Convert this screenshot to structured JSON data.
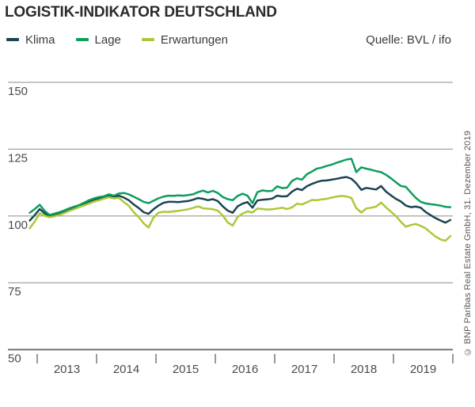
{
  "header": {
    "title": "LOGISTIK-INDIKATOR DEUTSCHLAND"
  },
  "legend": {
    "items": [
      {
        "label": "Klima",
        "color": "#1c4452"
      },
      {
        "label": "Lage",
        "color": "#0c9e5e"
      },
      {
        "label": "Erwartungen",
        "color": "#a9c938"
      }
    ],
    "source": "Quelle: BVL / ifo"
  },
  "footer": {
    "copyright": "© BNP Paribas Real Estate GmbH, 31. Dezember 2019"
  },
  "chart_data": {
    "type": "line",
    "title": "Logistik-Indikator Deutschland",
    "xlabel": "",
    "ylabel": "",
    "ylim": [
      50,
      150
    ],
    "y_ticks": [
      150,
      125,
      100,
      75,
      50
    ],
    "x_tick_years": [
      2013,
      2014,
      2015,
      2016,
      2017,
      2018,
      2019
    ],
    "x_start": {
      "year": 2012,
      "month": 11
    },
    "frequency": "monthly",
    "grid": true,
    "legend_position": "top-left",
    "colors": {
      "grid": "#a3a3a3",
      "axis": "#6f6f6f",
      "tick_text": "#4b4b4b"
    },
    "series": [
      {
        "name": "Klima",
        "color": "#1c4452",
        "values": [
          98.3,
          100.3,
          102.6,
          101.0,
          100.0,
          100.4,
          100.9,
          101.6,
          102.4,
          103.1,
          103.7,
          104.5,
          105.3,
          106.0,
          106.5,
          107.0,
          107.5,
          107.1,
          107.6,
          106.9,
          105.9,
          104.3,
          103.0,
          101.4,
          100.8,
          102.5,
          103.9,
          104.9,
          105.3,
          105.3,
          105.2,
          105.4,
          105.6,
          106.1,
          106.7,
          106.4,
          105.9,
          106.3,
          105.6,
          103.6,
          102.0,
          101.2,
          103.6,
          104.6,
          105.2,
          103.1,
          105.8,
          106.1,
          106.2,
          106.5,
          107.6,
          107.3,
          107.4,
          109.1,
          110.2,
          109.7,
          111.1,
          112.0,
          112.7,
          113.2,
          113.3,
          113.6,
          113.9,
          114.3,
          114.6,
          113.9,
          112.2,
          109.8,
          110.5,
          110.2,
          109.9,
          111.2,
          109.1,
          107.7,
          106.4,
          105.4,
          103.9,
          103.3,
          103.5,
          103.1,
          101.5,
          100.3,
          99.2,
          98.3,
          97.5,
          98.5
        ]
      },
      {
        "name": "Lage",
        "color": "#0c9e5e",
        "values": [
          101.2,
          102.6,
          104.2,
          101.9,
          100.4,
          100.9,
          101.4,
          102.1,
          102.9,
          103.5,
          104.1,
          105.0,
          105.9,
          106.6,
          107.1,
          107.4,
          108.1,
          107.6,
          108.4,
          108.6,
          108.1,
          107.2,
          106.3,
          105.3,
          104.8,
          105.7,
          106.6,
          107.2,
          107.6,
          107.5,
          107.7,
          107.6,
          107.8,
          108.1,
          108.9,
          109.5,
          108.8,
          109.4,
          108.6,
          107.1,
          106.3,
          105.9,
          107.5,
          108.3,
          107.6,
          104.8,
          108.9,
          109.6,
          109.3,
          109.4,
          111.1,
          110.4,
          110.6,
          113.1,
          114.1,
          113.6,
          115.6,
          116.6,
          117.7,
          118.1,
          118.7,
          119.2,
          119.9,
          120.5,
          121.1,
          121.4,
          116.4,
          118.2,
          117.7,
          117.3,
          116.8,
          116.4,
          115.4,
          114.1,
          112.6,
          111.2,
          110.9,
          108.8,
          106.8,
          105.3,
          104.7,
          104.4,
          104.2,
          103.9,
          103.4,
          103.3
        ]
      },
      {
        "name": "Erwartungen",
        "color": "#a9c938",
        "values": [
          95.4,
          97.9,
          101.0,
          100.1,
          99.5,
          99.9,
          100.4,
          101.1,
          101.9,
          102.6,
          103.3,
          104.0,
          104.7,
          105.4,
          105.9,
          106.5,
          107.0,
          106.6,
          106.8,
          105.2,
          103.8,
          101.4,
          99.6,
          97.3,
          95.7,
          99.4,
          101.2,
          101.6,
          101.5,
          101.7,
          101.9,
          102.2,
          102.5,
          103.0,
          103.6,
          102.9,
          102.7,
          102.5,
          102.0,
          100.2,
          97.6,
          96.4,
          99.6,
          100.9,
          101.7,
          101.3,
          102.8,
          102.6,
          102.4,
          102.5,
          102.8,
          103.1,
          102.6,
          103.2,
          104.6,
          104.3,
          105.1,
          106.0,
          105.9,
          106.2,
          106.4,
          106.9,
          107.2,
          107.5,
          107.3,
          106.7,
          102.9,
          101.3,
          102.8,
          103.1,
          103.5,
          105.0,
          103.2,
          101.6,
          100.0,
          97.8,
          96.0,
          96.6,
          97.0,
          96.3,
          95.4,
          93.8,
          92.3,
          91.2,
          90.7,
          92.5
        ]
      }
    ]
  }
}
